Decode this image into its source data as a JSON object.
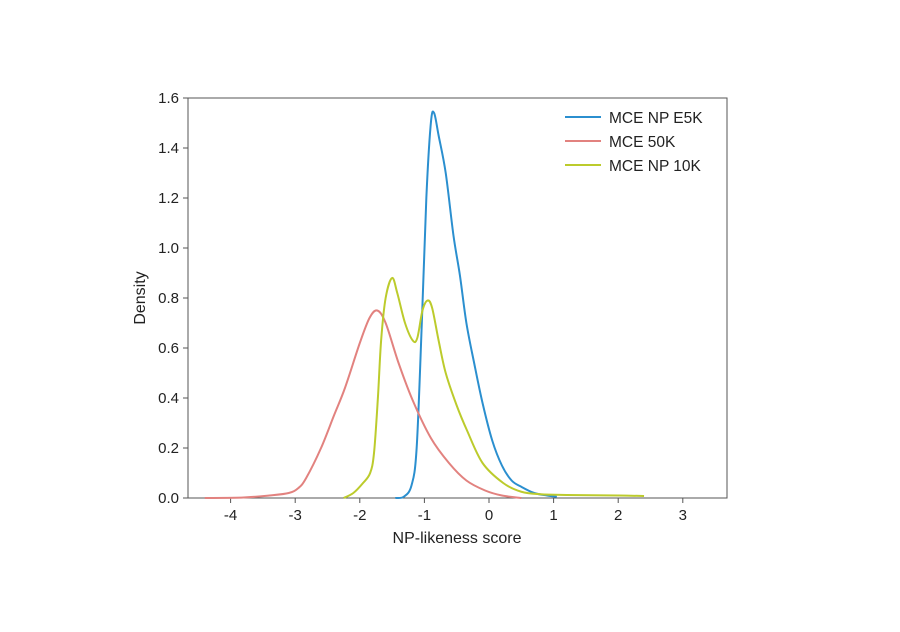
{
  "chart_data": {
    "type": "line",
    "title": "",
    "xlabel": "NP-likeness score",
    "ylabel": "Density",
    "xlim": [
      -4.7,
      3.7
    ],
    "ylim": [
      0,
      1.6
    ],
    "xticks": [
      "-4",
      "-3",
      "-2",
      "-1",
      "0",
      "1",
      "2",
      "3"
    ],
    "yticks": [
      "0.0",
      "0.2",
      "0.4",
      "0.6",
      "0.8",
      "1.0",
      "1.2",
      "1.4",
      "1.6"
    ],
    "grid": false,
    "legend_position": "top-right",
    "series": [
      {
        "name": "MCE NP E5K",
        "color": "#2b8fcf",
        "points": [
          [
            -1.45,
            0
          ],
          [
            -1.32,
            0.005
          ],
          [
            -1.2,
            0.05
          ],
          [
            -1.12,
            0.2
          ],
          [
            -1.04,
            0.7
          ],
          [
            -0.97,
            1.2
          ],
          [
            -0.9,
            1.5
          ],
          [
            -0.85,
            1.54
          ],
          [
            -0.78,
            1.45
          ],
          [
            -0.67,
            1.3
          ],
          [
            -0.55,
            1.05
          ],
          [
            -0.45,
            0.89
          ],
          [
            -0.35,
            0.7
          ],
          [
            -0.23,
            0.54
          ],
          [
            -0.1,
            0.38
          ],
          [
            0.05,
            0.23
          ],
          [
            0.2,
            0.13
          ],
          [
            0.35,
            0.07
          ],
          [
            0.5,
            0.045
          ],
          [
            0.7,
            0.02
          ],
          [
            0.9,
            0.01
          ],
          [
            1.05,
            0.005
          ]
        ]
      },
      {
        "name": "MCE 50K",
        "color": "#e2827f",
        "points": [
          [
            -4.4,
            0
          ],
          [
            -3.8,
            0.002
          ],
          [
            -3.4,
            0.01
          ],
          [
            -3.1,
            0.02
          ],
          [
            -2.95,
            0.04
          ],
          [
            -2.83,
            0.08
          ],
          [
            -2.6,
            0.2
          ],
          [
            -2.4,
            0.33
          ],
          [
            -2.23,
            0.44
          ],
          [
            -2.0,
            0.62
          ],
          [
            -1.85,
            0.72
          ],
          [
            -1.73,
            0.75
          ],
          [
            -1.6,
            0.7
          ],
          [
            -1.4,
            0.54
          ],
          [
            -1.18,
            0.39
          ],
          [
            -0.9,
            0.24
          ],
          [
            -0.62,
            0.14
          ],
          [
            -0.35,
            0.07
          ],
          [
            -0.06,
            0.03
          ],
          [
            0.2,
            0.01
          ],
          [
            0.5,
            0
          ]
        ]
      },
      {
        "name": "MCE NP 10K",
        "color": "#bccb2c",
        "points": [
          [
            -2.25,
            0
          ],
          [
            -2.1,
            0.02
          ],
          [
            -1.95,
            0.06
          ],
          [
            -1.84,
            0.1
          ],
          [
            -1.78,
            0.18
          ],
          [
            -1.72,
            0.4
          ],
          [
            -1.67,
            0.63
          ],
          [
            -1.6,
            0.8
          ],
          [
            -1.5,
            0.88
          ],
          [
            -1.42,
            0.82
          ],
          [
            -1.3,
            0.7
          ],
          [
            -1.18,
            0.63
          ],
          [
            -1.11,
            0.64
          ],
          [
            -1.03,
            0.75
          ],
          [
            -0.95,
            0.79
          ],
          [
            -0.88,
            0.76
          ],
          [
            -0.78,
            0.63
          ],
          [
            -0.67,
            0.5
          ],
          [
            -0.5,
            0.37
          ],
          [
            -0.34,
            0.27
          ],
          [
            -0.1,
            0.14
          ],
          [
            0.22,
            0.06
          ],
          [
            0.5,
            0.025
          ],
          [
            0.8,
            0.015
          ],
          [
            1.2,
            0.012
          ],
          [
            2.0,
            0.01
          ],
          [
            2.4,
            0.008
          ]
        ]
      }
    ]
  }
}
